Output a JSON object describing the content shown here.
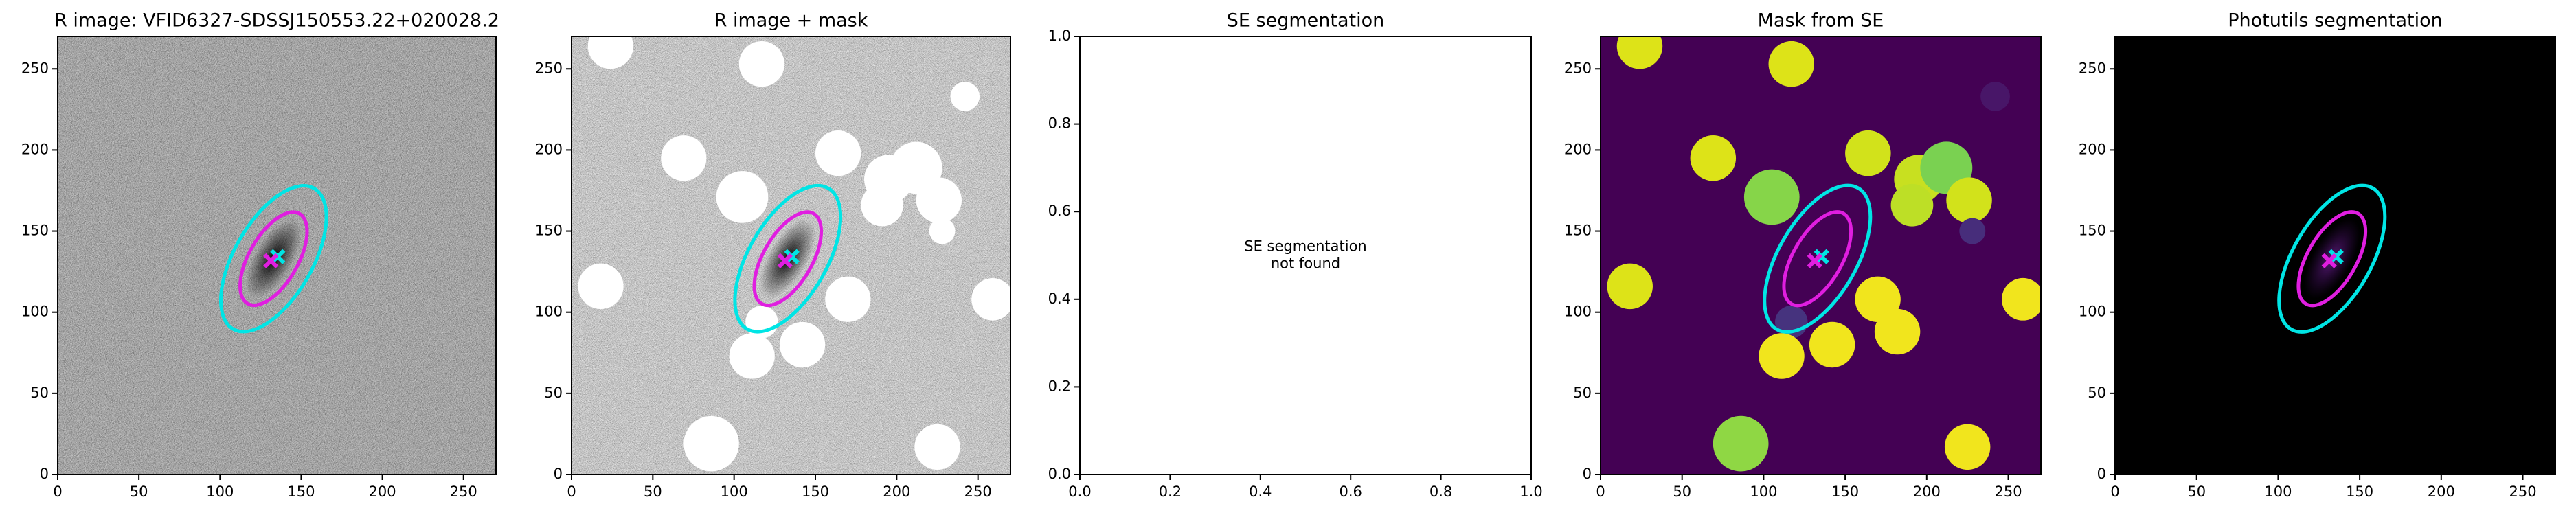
{
  "chart_data": [
    {
      "type": "image",
      "title": "R image: VFID6327-SDSSJ150553.22+020028.2",
      "xlim": [
        0,
        270
      ],
      "ylim": [
        0,
        270
      ],
      "xticks": [
        0,
        50,
        100,
        150,
        200,
        250
      ],
      "yticks": [
        0,
        50,
        100,
        150,
        200,
        250
      ],
      "ellipses": [
        {
          "color": "#00e5e5",
          "x": 133,
          "y": 133,
          "a": 50,
          "b": 24,
          "angle": 60
        },
        {
          "color": "#e01ee0",
          "x": 133,
          "y": 133,
          "a": 32,
          "b": 15,
          "angle": 60
        }
      ]
    },
    {
      "type": "image",
      "title": "R image + mask",
      "xlim": [
        0,
        270
      ],
      "ylim": [
        0,
        270
      ],
      "xticks": [
        0,
        50,
        100,
        150,
        200,
        250
      ],
      "yticks": [
        0,
        50,
        100,
        150,
        200,
        250
      ],
      "masks": [
        {
          "x": 24,
          "y": 264,
          "r": 14,
          "color": "#ffffff"
        },
        {
          "x": 117,
          "y": 253,
          "r": 14,
          "color": "#ffffff"
        },
        {
          "x": 242,
          "y": 233,
          "r": 9,
          "color": "#ffffff"
        },
        {
          "x": 69,
          "y": 195,
          "r": 14,
          "color": "#ffffff"
        },
        {
          "x": 164,
          "y": 198,
          "r": 14,
          "color": "#ffffff"
        },
        {
          "x": 105,
          "y": 171,
          "r": 16,
          "color": "#ffffff"
        },
        {
          "x": 195,
          "y": 182,
          "r": 15,
          "color": "#ffffff"
        },
        {
          "x": 212,
          "y": 189,
          "r": 16,
          "color": "#ffffff"
        },
        {
          "x": 191,
          "y": 166,
          "r": 13,
          "color": "#ffffff"
        },
        {
          "x": 226,
          "y": 169,
          "r": 14,
          "color": "#ffffff"
        },
        {
          "x": 228,
          "y": 150,
          "r": 8,
          "color": "#ffffff"
        },
        {
          "x": 18,
          "y": 116,
          "r": 14,
          "color": "#ffffff"
        },
        {
          "x": 170,
          "y": 108,
          "r": 14,
          "color": "#ffffff"
        },
        {
          "x": 259,
          "y": 108,
          "r": 13,
          "color": "#ffffff"
        },
        {
          "x": 117,
          "y": 94,
          "r": 10,
          "color": "#ffffff"
        },
        {
          "x": 142,
          "y": 80,
          "r": 14,
          "color": "#ffffff"
        },
        {
          "x": 111,
          "y": 73,
          "r": 14,
          "color": "#ffffff"
        },
        {
          "x": 86,
          "y": 19,
          "r": 17,
          "color": "#ffffff"
        },
        {
          "x": 225,
          "y": 17,
          "r": 14,
          "color": "#ffffff"
        }
      ],
      "ellipses": [
        {
          "color": "#00e5e5",
          "x": 133,
          "y": 133,
          "a": 50,
          "b": 24,
          "angle": 60
        },
        {
          "color": "#e01ee0",
          "x": 133,
          "y": 133,
          "a": 32,
          "b": 15,
          "angle": 60
        }
      ]
    },
    {
      "type": "empty",
      "title": "SE segmentation",
      "background_color": "#ffffff",
      "xlim": [
        0,
        1
      ],
      "ylim": [
        0,
        1
      ],
      "xticks": [
        {
          "value": 0,
          "label": "0.0"
        },
        {
          "value": 0.2,
          "label": "0.2"
        },
        {
          "value": 0.4,
          "label": "0.4"
        },
        {
          "value": 0.6,
          "label": "0.6"
        },
        {
          "value": 0.8,
          "label": "0.8"
        },
        {
          "value": 1,
          "label": "1.0"
        }
      ],
      "yticks": [
        {
          "value": 0,
          "label": "0.0"
        },
        {
          "value": 0.2,
          "label": "0.2"
        },
        {
          "value": 0.4,
          "label": "0.4"
        },
        {
          "value": 0.6,
          "label": "0.6"
        },
        {
          "value": 0.8,
          "label": "0.8"
        },
        {
          "value": 1,
          "label": "1.0"
        }
      ],
      "annotation": [
        "SE segmentation",
        "not found"
      ]
    },
    {
      "type": "image",
      "title": "Mask from SE",
      "background_color": "#440154",
      "xlim": [
        0,
        270
      ],
      "ylim": [
        0,
        270
      ],
      "xticks": [
        0,
        50,
        100,
        150,
        200,
        250
      ],
      "yticks": [
        0,
        50,
        100,
        150,
        200,
        250
      ],
      "masks": [
        {
          "x": 24,
          "y": 264,
          "r": 14,
          "color": "#dde318"
        },
        {
          "x": 117,
          "y": 253,
          "r": 14,
          "color": "#dde318"
        },
        {
          "x": 242,
          "y": 233,
          "r": 9,
          "color": "#481668"
        },
        {
          "x": 69,
          "y": 195,
          "r": 14,
          "color": "#dde318"
        },
        {
          "x": 164,
          "y": 198,
          "r": 14,
          "color": "#d2e21b"
        },
        {
          "x": 105,
          "y": 171,
          "r": 17,
          "color": "#86d549"
        },
        {
          "x": 195,
          "y": 182,
          "r": 15,
          "color": "#c8e020"
        },
        {
          "x": 212,
          "y": 189,
          "r": 16,
          "color": "#7ad151"
        },
        {
          "x": 191,
          "y": 166,
          "r": 13,
          "color": "#bddf26"
        },
        {
          "x": 226,
          "y": 169,
          "r": 14,
          "color": "#d2e21b"
        },
        {
          "x": 228,
          "y": 150,
          "r": 8,
          "color": "#472d7b"
        },
        {
          "x": 18,
          "y": 116,
          "r": 14,
          "color": "#dde318"
        },
        {
          "x": 170,
          "y": 108,
          "r": 14,
          "color": "#f1e51d"
        },
        {
          "x": 259,
          "y": 108,
          "r": 13,
          "color": "#f1e51d"
        },
        {
          "x": 117,
          "y": 94,
          "r": 10,
          "color": "#46337e"
        },
        {
          "x": 142,
          "y": 80,
          "r": 14,
          "color": "#f1e51d"
        },
        {
          "x": 111,
          "y": 73,
          "r": 14,
          "color": "#f1e51d"
        },
        {
          "x": 86,
          "y": 19,
          "r": 17,
          "color": "#8fd744"
        },
        {
          "x": 225,
          "y": 17,
          "r": 14,
          "color": "#f1e51d"
        },
        {
          "x": 182,
          "y": 88,
          "r": 14,
          "color": "#f1e51d"
        }
      ],
      "ellipses": [
        {
          "color": "#00e5e5",
          "x": 133,
          "y": 133,
          "a": 50,
          "b": 24,
          "angle": 60
        },
        {
          "color": "#e01ee0",
          "x": 133,
          "y": 133,
          "a": 32,
          "b": 15,
          "angle": 60
        }
      ]
    },
    {
      "type": "image",
      "title": "Photutils segmentation",
      "background_color": "#000000",
      "xlim": [
        0,
        270
      ],
      "ylim": [
        0,
        270
      ],
      "xticks": [
        0,
        50,
        100,
        150,
        200,
        250
      ],
      "yticks": [
        0,
        50,
        100,
        150,
        200,
        250
      ],
      "ellipses": [
        {
          "color": "#00e5e5",
          "x": 133,
          "y": 133,
          "a": 50,
          "b": 24,
          "angle": 60
        },
        {
          "color": "#e01ee0",
          "x": 133,
          "y": 133,
          "a": 32,
          "b": 15,
          "angle": 60
        }
      ]
    }
  ]
}
